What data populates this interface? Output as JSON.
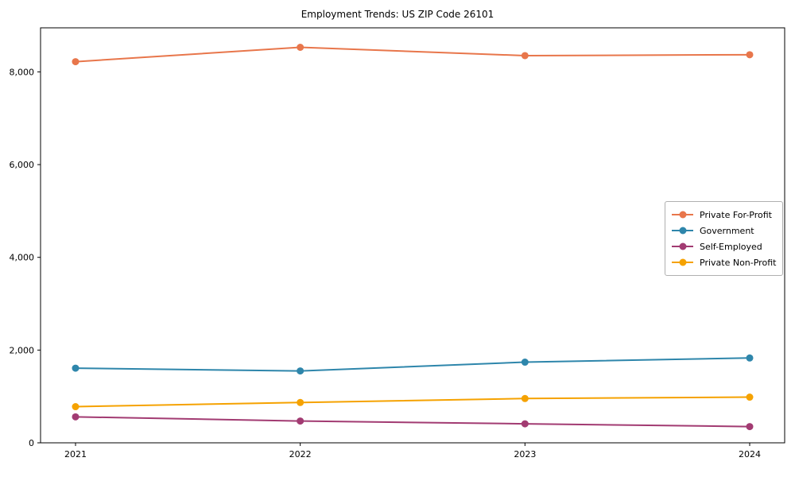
{
  "chart_data": {
    "type": "line",
    "title": "Employment Trends: US ZIP Code 26101",
    "categories": [
      "2021",
      "2022",
      "2023",
      "2024"
    ],
    "series": [
      {
        "name": "Private For-Profit",
        "color": "#E8764B",
        "values": [
          8220,
          8530,
          8350,
          8370
        ]
      },
      {
        "name": "Government",
        "color": "#2E86AB",
        "values": [
          1610,
          1550,
          1740,
          1830
        ]
      },
      {
        "name": "Self-Employed",
        "color": "#A23B72",
        "values": [
          560,
          470,
          410,
          350
        ]
      },
      {
        "name": "Private Non-Profit",
        "color": "#F5A201",
        "values": [
          780,
          870,
          955,
          985
        ]
      }
    ],
    "xlabel": "",
    "ylabel": "",
    "yticks": [
      0,
      2000,
      4000,
      6000,
      8000
    ],
    "ytick_labels": [
      "0",
      "2,000",
      "4,000",
      "6,000",
      "8,000"
    ],
    "ylim": [
      0,
      8950
    ],
    "grid": false,
    "legend_position": "center right",
    "axis_color": "#000000"
  }
}
